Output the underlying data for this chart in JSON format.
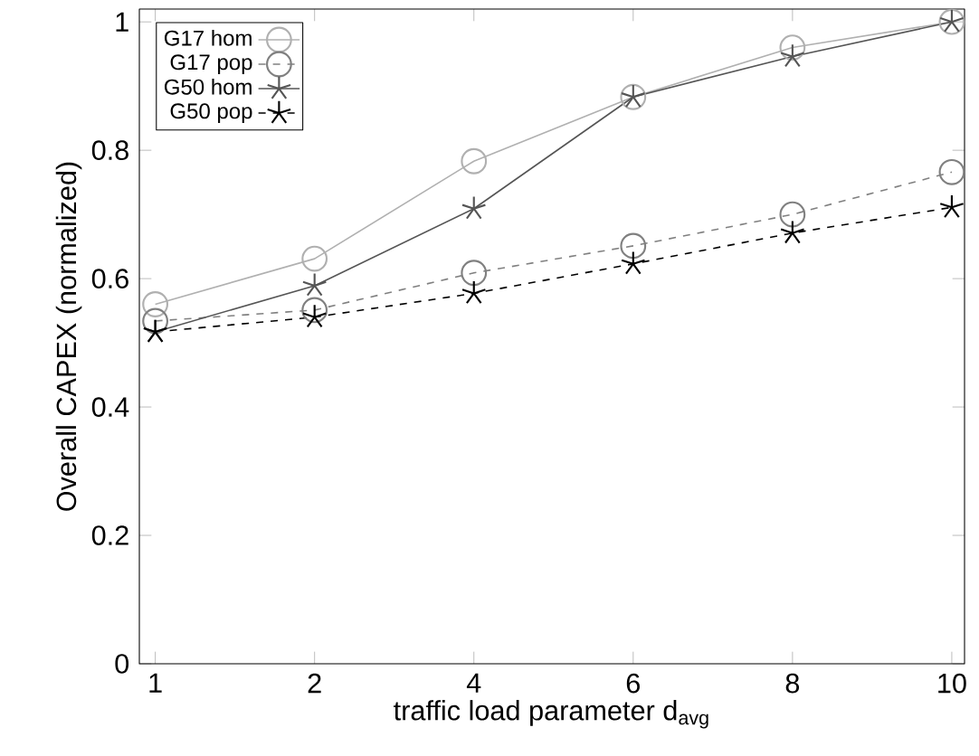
{
  "chart_data": {
    "type": "line",
    "xlabel": "traffic load parameter d$_{avg}$",
    "ylabel": "Overall CAPEX (normalized)",
    "categories": [
      "1",
      "2",
      "4",
      "6",
      "8",
      "10"
    ],
    "ylim": [
      0,
      1.02
    ],
    "yticks": [
      0,
      0.2,
      0.4,
      0.6,
      0.8,
      1
    ],
    "legend": "top left",
    "grid": false,
    "series": [
      {
        "name": "G17 hom",
        "color": "#b0b0b0",
        "marker": "circle",
        "line_style": "solid",
        "values": [
          0.56,
          0.631,
          0.783,
          0.883,
          0.96,
          1.0
        ]
      },
      {
        "name": "G17 pop",
        "color": "#808080",
        "marker": "circle",
        "line_style": "dashed",
        "values": [
          0.534,
          0.551,
          0.609,
          0.651,
          0.7,
          0.766
        ]
      },
      {
        "name": "G50 hom",
        "color": "#555555",
        "marker": "cross",
        "line_style": "solid",
        "values": [
          0.517,
          0.589,
          0.709,
          0.883,
          0.946,
          1.0
        ]
      },
      {
        "name": "G50 pop",
        "color": "#000000",
        "marker": "cross",
        "line_style": "dashed",
        "values": [
          0.517,
          0.54,
          0.577,
          0.623,
          0.671,
          0.711
        ]
      }
    ]
  }
}
